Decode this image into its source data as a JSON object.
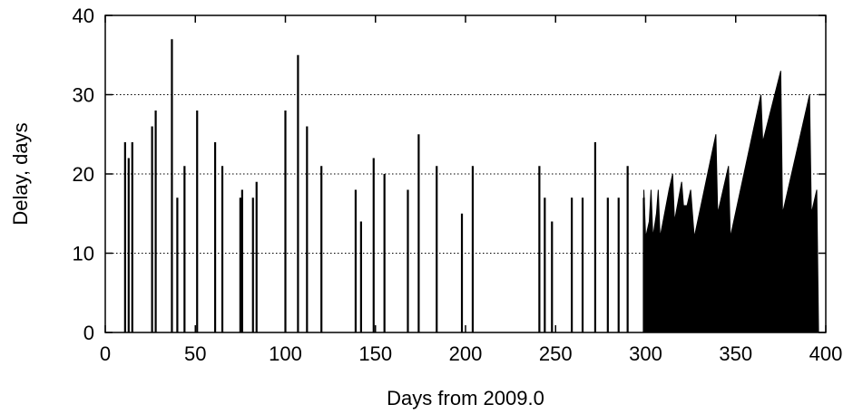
{
  "chart_data": {
    "type": "bar",
    "title": "",
    "xlabel": "Days from 2009.0",
    "ylabel": "Delay, days",
    "xlim": [
      0,
      400
    ],
    "ylim": [
      0,
      40
    ],
    "xticks": [
      0,
      50,
      100,
      150,
      200,
      250,
      300,
      350,
      400
    ],
    "yticks": [
      0,
      10,
      20,
      30,
      40
    ],
    "grid": "horizontal dotted at y=10,20,30",
    "legend": "none",
    "bar_color": "#000000",
    "series": [
      {
        "points": [
          {
            "x": 11,
            "y": 24
          },
          {
            "x": 13,
            "y": 22
          },
          {
            "x": 15,
            "y": 24
          },
          {
            "x": 26,
            "y": 26
          },
          {
            "x": 28,
            "y": 28
          },
          {
            "x": 37,
            "y": 37
          },
          {
            "x": 40,
            "y": 17
          },
          {
            "x": 44,
            "y": 21
          },
          {
            "x": 51,
            "y": 28
          },
          {
            "x": 61,
            "y": 24
          },
          {
            "x": 65,
            "y": 21
          },
          {
            "x": 75,
            "y": 17
          },
          {
            "x": 76,
            "y": 18
          },
          {
            "x": 82,
            "y": 17
          },
          {
            "x": 84,
            "y": 19
          },
          {
            "x": 100,
            "y": 28
          },
          {
            "x": 107,
            "y": 35
          },
          {
            "x": 112,
            "y": 26
          },
          {
            "x": 120,
            "y": 21
          },
          {
            "x": 139,
            "y": 18
          },
          {
            "x": 142,
            "y": 14
          },
          {
            "x": 149,
            "y": 22
          },
          {
            "x": 155,
            "y": 20
          },
          {
            "x": 168,
            "y": 18
          },
          {
            "x": 174,
            "y": 25
          },
          {
            "x": 184,
            "y": 21
          },
          {
            "x": 198,
            "y": 15
          },
          {
            "x": 204,
            "y": 21
          },
          {
            "x": 241,
            "y": 21
          },
          {
            "x": 244,
            "y": 17
          },
          {
            "x": 248,
            "y": 14
          },
          {
            "x": 259,
            "y": 17
          },
          {
            "x": 265,
            "y": 17
          },
          {
            "x": 272,
            "y": 24
          },
          {
            "x": 279,
            "y": 17
          },
          {
            "x": 285,
            "y": 17
          },
          {
            "x": 290,
            "y": 21
          },
          {
            "x": 299,
            "y": 17
          }
        ],
        "dense_region": {
          "x_start": 299,
          "x_end": 400,
          "profile": [
            [
              299,
              18
            ],
            [
              300,
              12
            ],
            [
              302,
              14
            ],
            [
              303,
              18
            ],
            [
              304,
              12
            ],
            [
              306,
              15
            ],
            [
              307,
              18
            ],
            [
              308,
              12
            ],
            [
              313,
              18
            ],
            [
              315,
              20
            ],
            [
              316,
              14
            ],
            [
              320,
              19
            ],
            [
              321,
              16
            ],
            [
              323,
              16
            ],
            [
              325,
              18
            ],
            [
              327,
              12
            ],
            [
              339,
              25
            ],
            [
              340,
              15
            ],
            [
              346,
              21
            ],
            [
              347,
              12
            ],
            [
              364,
              30
            ],
            [
              365,
              24
            ],
            [
              375,
              33
            ],
            [
              376,
              15
            ],
            [
              391,
              30
            ],
            [
              392,
              15
            ],
            [
              395,
              18
            ],
            [
              396,
              0
            ]
          ]
        }
      }
    ]
  }
}
